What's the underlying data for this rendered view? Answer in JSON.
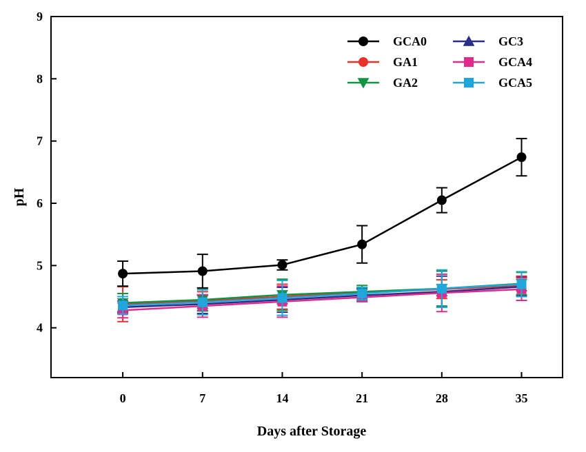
{
  "chart_data": {
    "type": "line",
    "title": "",
    "xlabel": "Days after Storage",
    "ylabel": "pH",
    "x": [
      0,
      7,
      14,
      21,
      28,
      35
    ],
    "x_tick_labels": [
      "0",
      "7",
      "14",
      "21",
      "28",
      "35"
    ],
    "xlim": [
      -6.3,
      38.6
    ],
    "ylim": [
      3.2,
      9
    ],
    "y_ticks": [
      4,
      5,
      6,
      7,
      8,
      9
    ],
    "y_tick_labels": [
      "4",
      "5",
      "6",
      "7",
      "8",
      "9"
    ],
    "grid": false,
    "legend_position": "top-right",
    "series": [
      {
        "name": "GCA0",
        "color": "#000000",
        "marker": "circle",
        "values": [
          4.87,
          4.91,
          5.01,
          5.34,
          6.05,
          6.74
        ],
        "errors": [
          0.2,
          0.27,
          0.08,
          0.3,
          0.2,
          0.3
        ]
      },
      {
        "name": "GA1",
        "color": "#e8312a",
        "marker": "circle",
        "values": [
          4.38,
          4.43,
          4.5,
          4.56,
          4.62,
          4.68
        ],
        "errors": [
          0.28,
          0.15,
          0.2,
          0.08,
          0.15,
          0.15
        ]
      },
      {
        "name": "GA2",
        "color": "#119344",
        "marker": "triangle-down",
        "values": [
          4.4,
          4.45,
          4.53,
          4.58,
          4.63,
          4.71
        ],
        "errors": [
          0.15,
          0.18,
          0.25,
          0.1,
          0.28,
          0.18
        ]
      },
      {
        "name": "GC3",
        "color": "#2b2e86",
        "marker": "triangle-up",
        "values": [
          4.33,
          4.38,
          4.45,
          4.52,
          4.58,
          4.66
        ],
        "errors": [
          0.1,
          0.15,
          0.2,
          0.1,
          0.25,
          0.15
        ]
      },
      {
        "name": "GCA4",
        "color": "#e02b8c",
        "marker": "square",
        "values": [
          4.28,
          4.35,
          4.42,
          4.49,
          4.56,
          4.62
        ],
        "errors": [
          0.12,
          0.18,
          0.25,
          0.06,
          0.3,
          0.18
        ]
      },
      {
        "name": "GCA5",
        "color": "#1fa7dc",
        "marker": "square",
        "values": [
          4.36,
          4.41,
          4.48,
          4.55,
          4.63,
          4.7
        ],
        "errors": [
          0.14,
          0.2,
          0.28,
          0.1,
          0.3,
          0.2
        ]
      }
    ]
  }
}
